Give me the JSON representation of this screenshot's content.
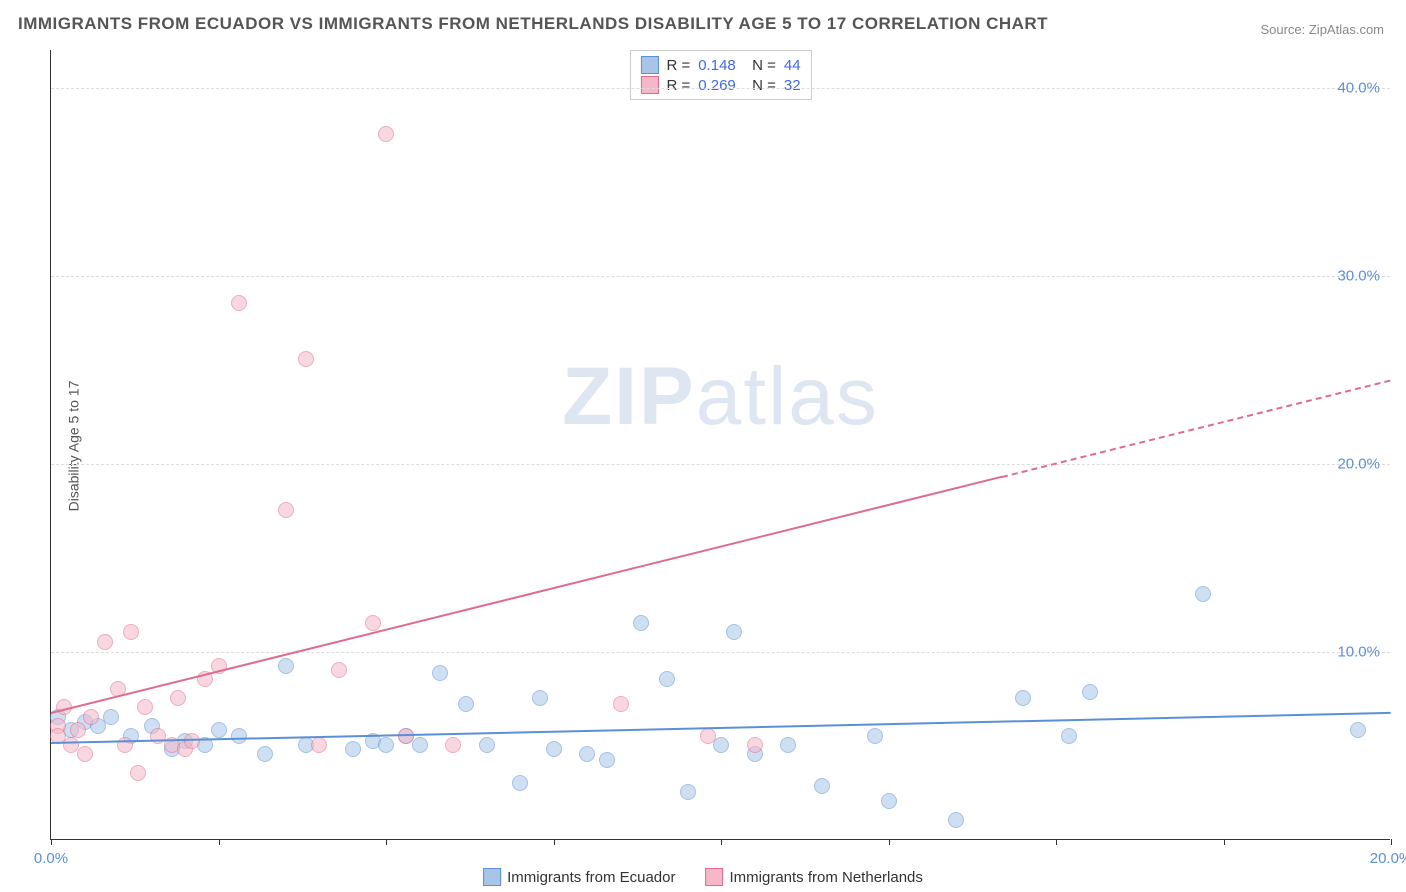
{
  "title": "IMMIGRANTS FROM ECUADOR VS IMMIGRANTS FROM NETHERLANDS DISABILITY AGE 5 TO 17 CORRELATION CHART",
  "source": "Source: ZipAtlas.com",
  "y_axis_label": "Disability Age 5 to 17",
  "watermark_bold": "ZIP",
  "watermark_thin": "atlas",
  "chart": {
    "type": "scatter",
    "background_color": "#ffffff",
    "grid_color": "#dddddd",
    "axis_color": "#333333",
    "tick_label_color": "#5b8fd6",
    "xlim": [
      0,
      20
    ],
    "ylim": [
      0,
      42
    ],
    "x_ticks": [
      0,
      2.5,
      5,
      7.5,
      10,
      12.5,
      15,
      17.5,
      20
    ],
    "x_tick_labels": {
      "0": "0.0%",
      "20": "20.0%"
    },
    "y_ticks": [
      10,
      20,
      30,
      40
    ],
    "y_tick_labels": {
      "10": "10.0%",
      "20": "20.0%",
      "30": "30.0%",
      "40": "40.0%"
    },
    "series": [
      {
        "name": "Immigrants from Ecuador",
        "color_fill": "#a8c5e8",
        "color_stroke": "#5b8fd6",
        "fill_opacity": 0.55,
        "marker_size": 16,
        "R": "0.148",
        "N": "44",
        "trend": {
          "x1": 0,
          "y1": 5.2,
          "x2": 20,
          "y2": 6.8,
          "dash_from_x": null
        },
        "points": [
          [
            0.1,
            6.5
          ],
          [
            0.3,
            5.8
          ],
          [
            0.5,
            6.2
          ],
          [
            0.7,
            6.0
          ],
          [
            0.9,
            6.5
          ],
          [
            1.2,
            5.5
          ],
          [
            1.5,
            6.0
          ],
          [
            1.8,
            4.8
          ],
          [
            2.0,
            5.2
          ],
          [
            2.3,
            5.0
          ],
          [
            2.5,
            5.8
          ],
          [
            2.8,
            5.5
          ],
          [
            3.2,
            4.5
          ],
          [
            3.5,
            9.2
          ],
          [
            3.8,
            5.0
          ],
          [
            4.5,
            4.8
          ],
          [
            4.8,
            5.2
          ],
          [
            5.0,
            5.0
          ],
          [
            5.3,
            5.5
          ],
          [
            5.5,
            5.0
          ],
          [
            5.8,
            8.8
          ],
          [
            6.2,
            7.2
          ],
          [
            6.5,
            5.0
          ],
          [
            7.0,
            3.0
          ],
          [
            7.3,
            7.5
          ],
          [
            7.5,
            4.8
          ],
          [
            8.0,
            4.5
          ],
          [
            8.3,
            4.2
          ],
          [
            8.8,
            11.5
          ],
          [
            9.2,
            8.5
          ],
          [
            9.5,
            2.5
          ],
          [
            10.0,
            5.0
          ],
          [
            10.2,
            11.0
          ],
          [
            10.5,
            4.5
          ],
          [
            11.0,
            5.0
          ],
          [
            11.5,
            2.8
          ],
          [
            12.3,
            5.5
          ],
          [
            12.5,
            2.0
          ],
          [
            13.5,
            1.0
          ],
          [
            14.5,
            7.5
          ],
          [
            15.2,
            5.5
          ],
          [
            15.5,
            7.8
          ],
          [
            17.2,
            13.0
          ],
          [
            19.5,
            5.8
          ]
        ]
      },
      {
        "name": "Immigrants from Netherlands",
        "color_fill": "#f5b8c8",
        "color_stroke": "#e06b8f",
        "fill_opacity": 0.55,
        "marker_size": 16,
        "R": "0.269",
        "N": "32",
        "trend": {
          "x1": 0,
          "y1": 6.8,
          "x2": 20,
          "y2": 24.5,
          "dash_from_x": 14.2
        },
        "points": [
          [
            0.1,
            6.0
          ],
          [
            0.1,
            5.5
          ],
          [
            0.2,
            7.0
          ],
          [
            0.3,
            5.0
          ],
          [
            0.4,
            5.8
          ],
          [
            0.5,
            4.5
          ],
          [
            0.6,
            6.5
          ],
          [
            0.8,
            10.5
          ],
          [
            1.0,
            8.0
          ],
          [
            1.1,
            5.0
          ],
          [
            1.2,
            11.0
          ],
          [
            1.3,
            3.5
          ],
          [
            1.4,
            7.0
          ],
          [
            1.6,
            5.5
          ],
          [
            1.8,
            5.0
          ],
          [
            1.9,
            7.5
          ],
          [
            2.0,
            4.8
          ],
          [
            2.1,
            5.2
          ],
          [
            2.3,
            8.5
          ],
          [
            2.5,
            9.2
          ],
          [
            2.8,
            28.5
          ],
          [
            3.5,
            17.5
          ],
          [
            3.8,
            25.5
          ],
          [
            4.0,
            5.0
          ],
          [
            4.3,
            9.0
          ],
          [
            4.8,
            11.5
          ],
          [
            5.0,
            37.5
          ],
          [
            5.3,
            5.5
          ],
          [
            6.0,
            5.0
          ],
          [
            8.5,
            7.2
          ],
          [
            9.8,
            5.5
          ],
          [
            10.5,
            5.0
          ]
        ]
      }
    ]
  },
  "bottom_legend": [
    {
      "label": "Immigrants from Ecuador",
      "fill": "#a8c5e8",
      "stroke": "#5b8fd6"
    },
    {
      "label": "Immigrants from Netherlands",
      "fill": "#f5b8c8",
      "stroke": "#e06b8f"
    }
  ]
}
